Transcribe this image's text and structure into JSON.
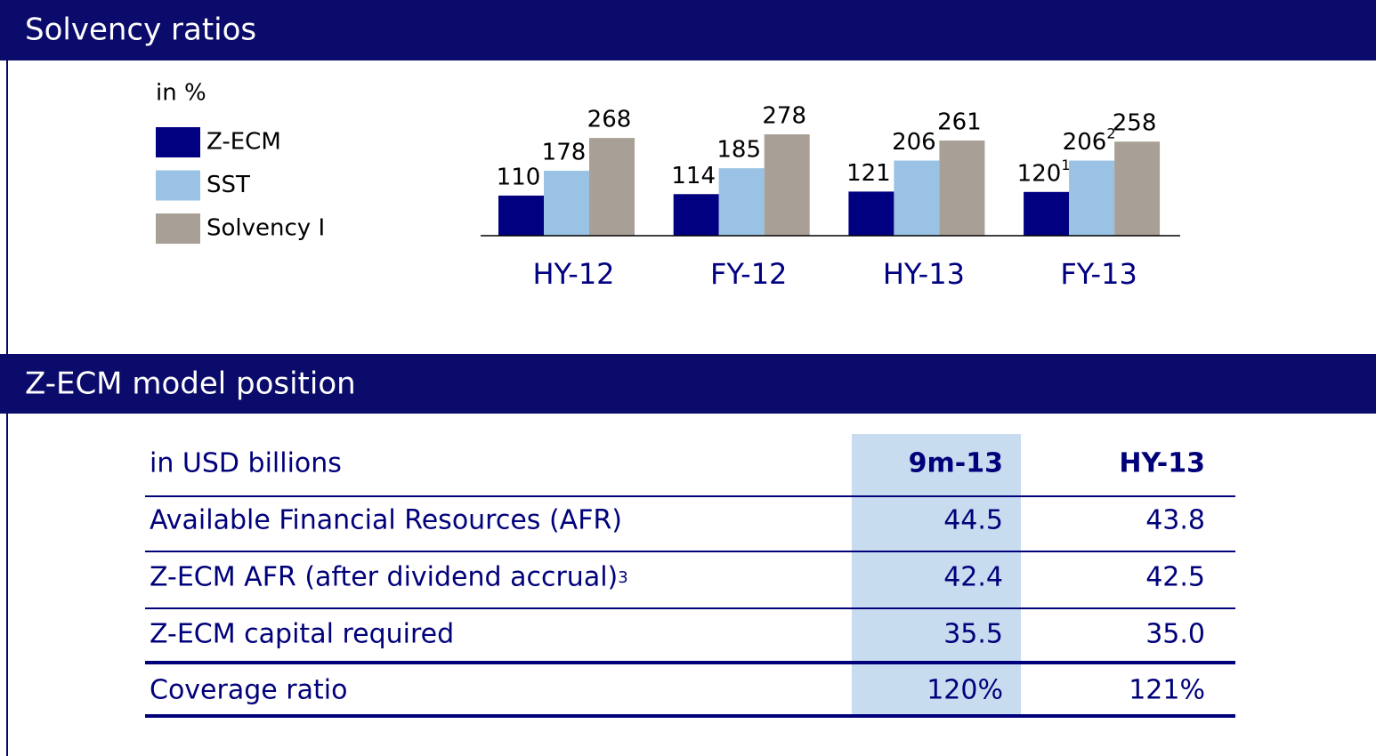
{
  "sections": [
    "Solvency ratios",
    "Z-ECM model position"
  ],
  "chart_data": {
    "type": "bar",
    "unit_label": "in %",
    "categories": [
      "HY-12",
      "FY-12",
      "HY-13",
      "FY-13"
    ],
    "series": [
      {
        "name": "Z-ECM",
        "color": "#000080",
        "values": [
          110,
          114,
          121,
          120
        ],
        "footnotes": [
          null,
          null,
          null,
          "1"
        ]
      },
      {
        "name": "SST",
        "color": "#99c2e4",
        "values": [
          178,
          185,
          206,
          206
        ],
        "footnotes": [
          null,
          null,
          null,
          "2"
        ]
      },
      {
        "name": "Solvency I",
        "color": "#a8a096",
        "values": [
          268,
          278,
          261,
          258
        ],
        "footnotes": [
          null,
          null,
          null,
          null
        ]
      }
    ],
    "ylim": [
      0,
      300
    ]
  },
  "table": {
    "header": [
      "in USD billions",
      "9m-13",
      "HY-13"
    ],
    "rows": [
      {
        "label": "Available Financial Resources (AFR)",
        "footnote": null,
        "values": [
          "44.5",
          "43.8"
        ]
      },
      {
        "label": "Z-ECM AFR (after dividend accrual)",
        "footnote": "3",
        "values": [
          "42.4",
          "42.5"
        ]
      },
      {
        "label": "Z-ECM capital required",
        "footnote": null,
        "values": [
          "35.5",
          "35.0"
        ]
      },
      {
        "label": "Coverage ratio",
        "footnote": null,
        "values": [
          "120%",
          "121%"
        ]
      }
    ]
  }
}
